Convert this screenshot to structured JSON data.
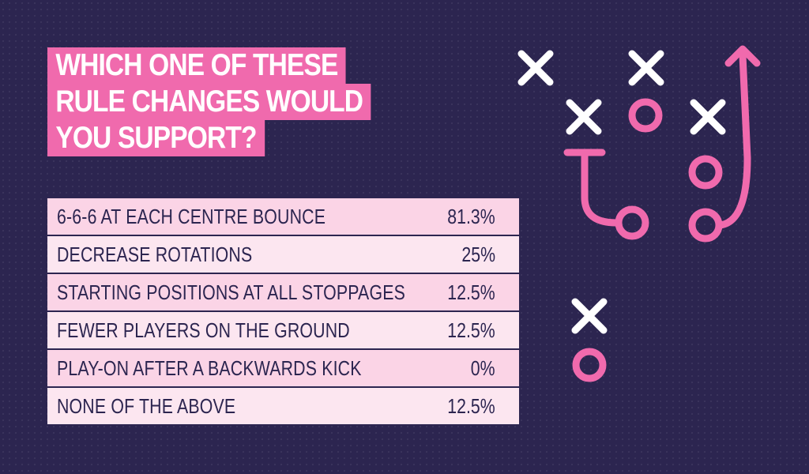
{
  "title": {
    "lines": [
      "WHICH ONE OF THESE",
      "RULE CHANGES WOULD",
      "YOU SUPPORT?"
    ]
  },
  "chart_data": {
    "type": "table",
    "title": "WHICH ONE OF THESE RULE CHANGES WOULD YOU SUPPORT?",
    "categories": [
      "6-6-6 AT EACH CENTRE BOUNCE",
      "DECREASE ROTATIONS",
      "STARTING POSITIONS AT ALL STOPPAGES",
      "FEWER PLAYERS ON THE GROUND",
      "PLAY-ON AFTER A BACKWARDS KICK",
      "NONE OF THE ABOVE"
    ],
    "values": [
      81.3,
      25,
      12.5,
      12.5,
      0,
      12.5
    ],
    "value_labels": [
      "81.3%",
      "25%",
      "12.5%",
      "12.5%",
      "0%",
      "12.5%"
    ],
    "unit": "%"
  },
  "colors": {
    "background": "#2c2550",
    "accent_pink": "#f06aad",
    "row_light": "#fce6f0",
    "row_dark": "#fbd4e6",
    "marks_white": "#ffffff"
  },
  "decoration": {
    "icons": [
      "x-mark-icon",
      "o-mark-icon",
      "curved-arrow-icon"
    ]
  }
}
